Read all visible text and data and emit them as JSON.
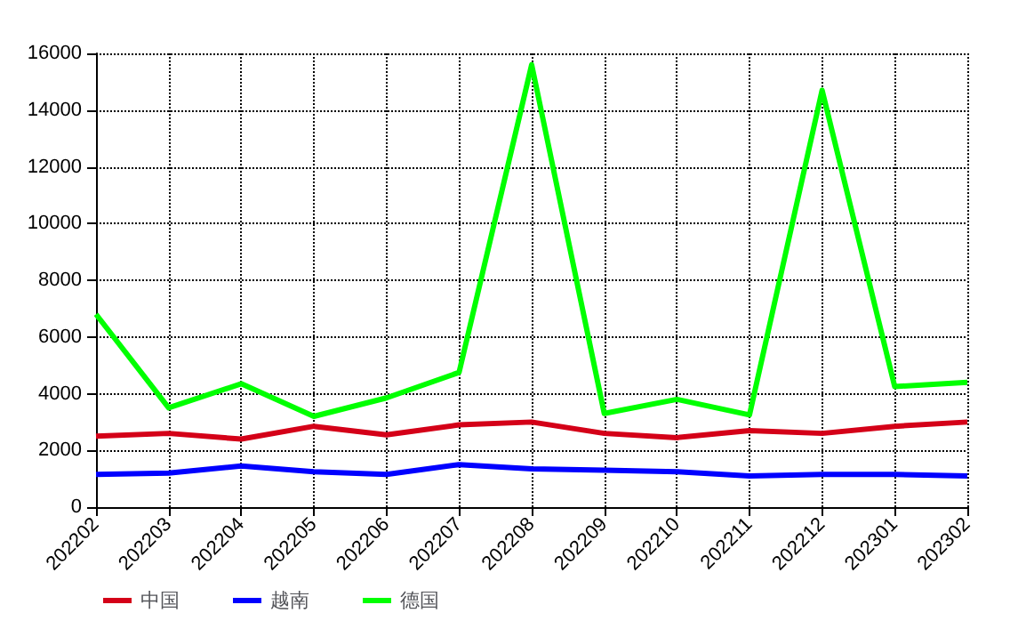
{
  "chart_data": {
    "type": "line",
    "categories": [
      "202202",
      "202203",
      "202204",
      "202205",
      "202206",
      "202207",
      "202208",
      "202209",
      "202210",
      "202211",
      "202212",
      "202301",
      "202302"
    ],
    "series": [
      {
        "name": "中国",
        "color": "#d40018",
        "values": [
          2500,
          2600,
          2400,
          2850,
          2550,
          2900,
          3000,
          2600,
          2450,
          2700,
          2600,
          2850,
          3000
        ]
      },
      {
        "name": "越南",
        "color": "#0000ff",
        "values": [
          1150,
          1200,
          1450,
          1250,
          1150,
          1500,
          1350,
          1300,
          1250,
          1100,
          1150,
          1150,
          1100
        ]
      },
      {
        "name": "德国",
        "color": "#00ff00",
        "values": [
          6800,
          3500,
          4350,
          3200,
          3850,
          4750,
          15600,
          3300,
          3800,
          3250,
          14700,
          4250,
          4400
        ]
      }
    ],
    "ylim": [
      0,
      16000
    ],
    "yticks": [
      0,
      2000,
      4000,
      6000,
      8000,
      10000,
      12000,
      14000,
      16000
    ],
    "grid": true,
    "legend": "bottom left",
    "marker": "none",
    "line_style": "solid"
  }
}
